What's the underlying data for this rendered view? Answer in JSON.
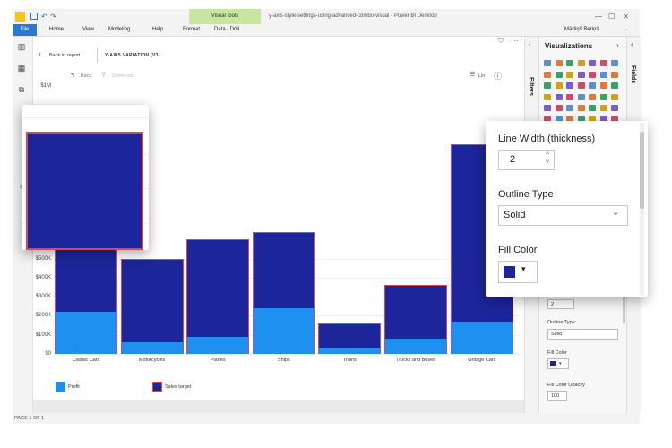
{
  "window": {
    "title": "y-axis-style-settings-using-advanced-combo-visual - Power BI Desktop",
    "visual_tools_tab": "Visual tools",
    "user": "Mārtiņš Beriņš",
    "minimize_glyph": "—",
    "maximize_glyph": "☐",
    "close_glyph": "✕"
  },
  "ribbon": {
    "tabs": [
      "File",
      "Home",
      "View",
      "Modeling",
      "Help",
      "Format",
      "Data / Drill"
    ]
  },
  "report": {
    "back_to_report": "Back to report",
    "visual_title": "Y-AXIS VARIATION (V3)",
    "back_label": "Back",
    "zoom_out_label": "Zoom-out",
    "lin_label": "Lin",
    "info_glyph": "ⓘ",
    "page_indicator": "PAGE 1 OF 1"
  },
  "panes": {
    "filters_label": "Filters",
    "visualizations_label": "Visualizations",
    "fields_label": "Fields",
    "small_width_value": "2",
    "outline_type_label": "Outline Type",
    "outline_type_value": "Solid",
    "fill_color_label": "Fill Color",
    "fill_color_opacity_label": "Fill Color Opacity",
    "fill_color_opacity_value": "100"
  },
  "format_popup": {
    "line_width_label": "Line Width (thickness)",
    "line_width_value": "2",
    "outline_type_label": "Outline Type",
    "outline_type_value": "Solid",
    "fill_color_label": "Fill Color",
    "fill_color_hex": "#1c2599"
  },
  "colors": {
    "profit": "#1e90f0",
    "sales_target_fill": "#1c2599",
    "sales_target_outline": "#e0474c"
  },
  "chart_data": {
    "type": "bar",
    "categories": [
      "Classic Cars",
      "Motorcycles",
      "Planes",
      "Ships",
      "Trains",
      "Trucks and Buses",
      "Vintage Cars"
    ],
    "series": [
      {
        "name": "Profit",
        "values": [
          220000,
          60000,
          90000,
          240000,
          35000,
          80000,
          170000
        ]
      },
      {
        "name": "Sales target",
        "values": [
          760000,
          500000,
          600000,
          640000,
          160000,
          360000,
          1100000
        ]
      }
    ],
    "y_ticks": [
      "$0",
      "$100K",
      "$200K",
      "$300K",
      "$400K",
      "$500K"
    ],
    "y_top_label": "$1M",
    "legend": [
      "Profit",
      "Sales target"
    ],
    "ylim": [
      0,
      1100000
    ]
  }
}
